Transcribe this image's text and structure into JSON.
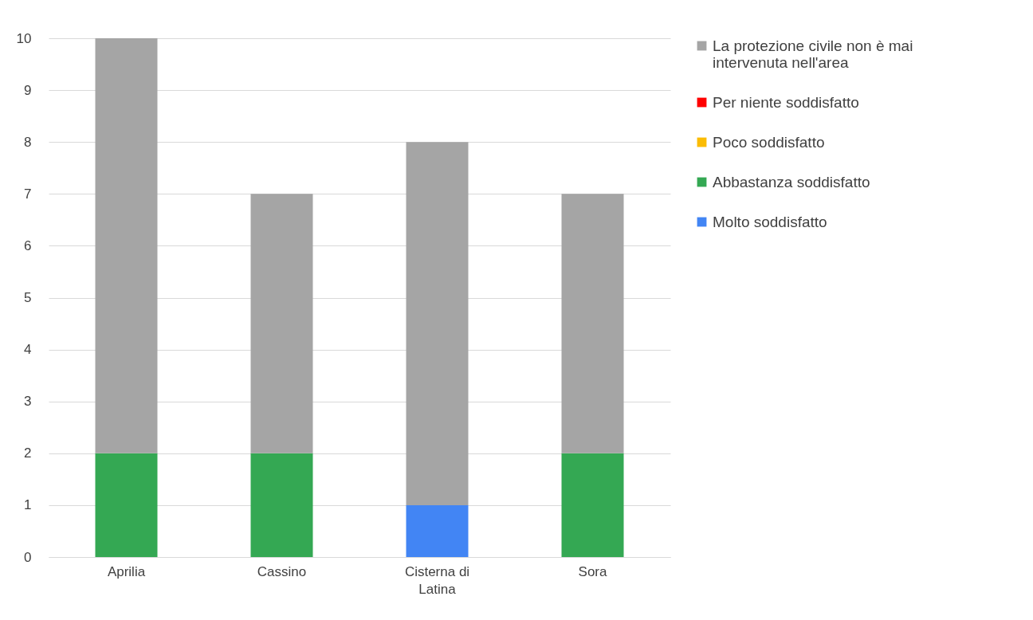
{
  "chart_data": {
    "type": "bar",
    "stacked": true,
    "categories": [
      "Aprilia",
      "Cassino",
      "Cisterna di Latina",
      "Sora"
    ],
    "series": [
      {
        "name": "Molto soddisfatto",
        "color": "#4285f4",
        "values": [
          0,
          0,
          1,
          0
        ]
      },
      {
        "name": "Abbastanza soddisfatto",
        "color": "#34a853",
        "values": [
          2,
          2,
          0,
          2
        ]
      },
      {
        "name": "Poco soddisfatto",
        "color": "#fbbc04",
        "values": [
          0,
          0,
          0,
          0
        ]
      },
      {
        "name": "Per niente soddisfatto",
        "color": "#ff0000",
        "values": [
          0,
          0,
          0,
          0
        ]
      },
      {
        "name": "La protezione civile non è mai intervenuta nell'area",
        "color": "#a5a5a5",
        "values": [
          8,
          5,
          7,
          5
        ]
      }
    ],
    "ylim": [
      0,
      10
    ],
    "yticks": [
      0,
      1,
      2,
      3,
      4,
      5,
      6,
      7,
      8,
      9,
      10
    ],
    "grid": "y",
    "legend": "right"
  }
}
